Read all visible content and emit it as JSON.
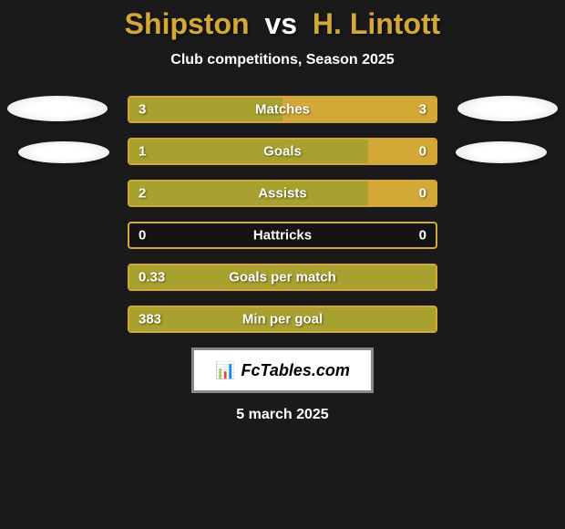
{
  "title": {
    "left": "Shipston",
    "vs": "vs",
    "right": "H. Lintott"
  },
  "subtitle": "Club competitions, Season 2025",
  "colors": {
    "background": "#1a1a1a",
    "accent": "#d4a837",
    "bar_left": "#a8a12f",
    "bar_right": "#d4a837",
    "text": "#ffffff"
  },
  "stats": [
    {
      "label": "Matches",
      "left_value": "3",
      "right_value": "3",
      "left_pct": 50,
      "right_pct": 50
    },
    {
      "label": "Goals",
      "left_value": "1",
      "right_value": "0",
      "left_pct": 78,
      "right_pct": 22
    },
    {
      "label": "Assists",
      "left_value": "2",
      "right_value": "0",
      "left_pct": 78,
      "right_pct": 22
    },
    {
      "label": "Hattricks",
      "left_value": "0",
      "right_value": "0",
      "left_pct": 0,
      "right_pct": 0
    },
    {
      "label": "Goals per match",
      "left_value": "0.33",
      "right_value": "",
      "left_pct": 100,
      "right_pct": 0
    },
    {
      "label": "Min per goal",
      "left_value": "383",
      "right_value": "",
      "left_pct": 100,
      "right_pct": 0
    }
  ],
  "branding": {
    "text": "FcTables.com",
    "icon": "📊"
  },
  "date": "5 march 2025"
}
